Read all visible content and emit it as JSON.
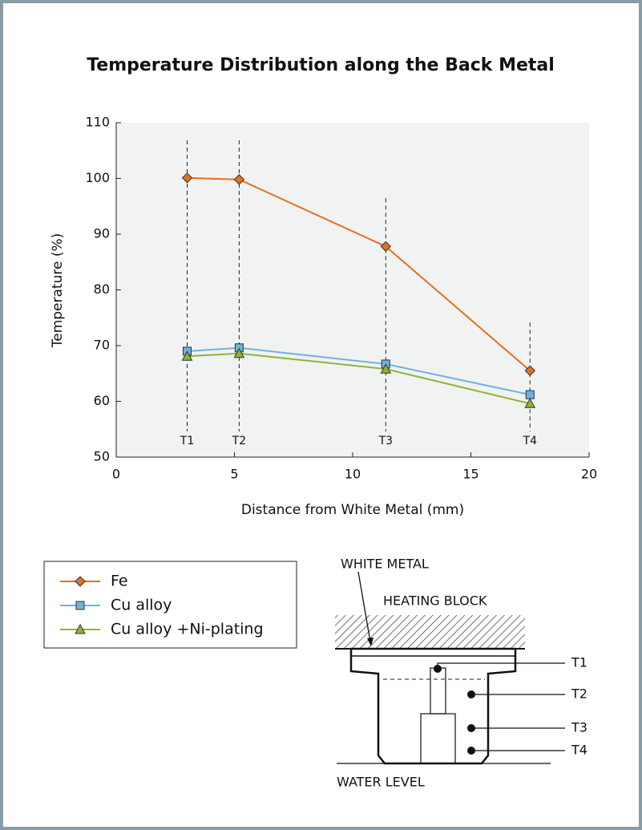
{
  "chart_data": {
    "type": "line",
    "title": "Temperature Distribution along the Back Metal",
    "x_label": "Distance from White Metal (mm)",
    "y_label": "Temperature (%)",
    "x": [
      3.0,
      5.2,
      11.4,
      17.5
    ],
    "point_labels": [
      "T1",
      "T2",
      "T3",
      "T4"
    ],
    "series": [
      {
        "name": "Fe",
        "color": "#e2701f",
        "marker": "diamond",
        "values": [
          100.1,
          99.8,
          87.8,
          65.5
        ]
      },
      {
        "name": "Cu alloy",
        "color": "#6db3dc",
        "marker": "square",
        "values": [
          69.0,
          69.6,
          66.7,
          61.2
        ]
      },
      {
        "name": "Cu alloy +Ni-plating",
        "color": "#8db533",
        "marker": "triangle",
        "values": [
          68.1,
          68.6,
          65.8,
          59.6
        ]
      }
    ],
    "xlim": [
      0,
      20
    ],
    "xticks": [
      0,
      5,
      10,
      15,
      20
    ],
    "ylim": [
      50,
      110
    ],
    "yticks": [
      50,
      60,
      70,
      80,
      90,
      100,
      110
    ],
    "plot_background": "#f1f2f2"
  },
  "diagram": {
    "white_metal": "WHITE METAL",
    "heating_block": "HEATING BLOCK",
    "sensors": [
      "T1",
      "T2",
      "T3",
      "T4"
    ],
    "water_level": "WATER LEVEL"
  }
}
